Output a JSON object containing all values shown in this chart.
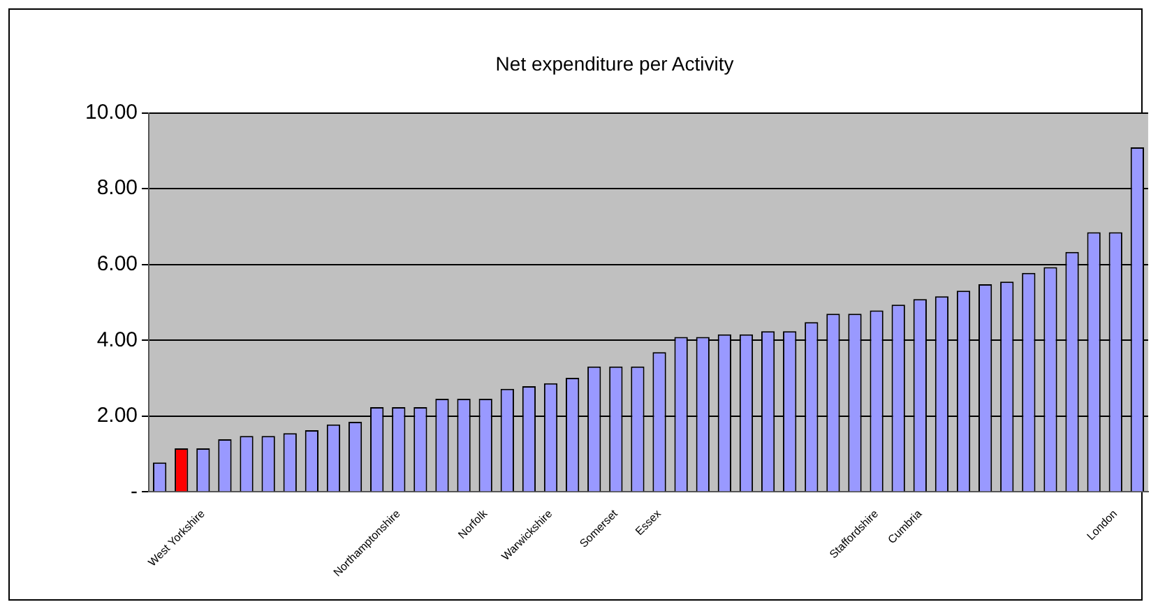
{
  "chart_data": {
    "type": "bar",
    "title": "Net expenditure per Activity",
    "categories": [
      null,
      null,
      "West Yorkshire",
      null,
      null,
      null,
      null,
      null,
      null,
      null,
      null,
      "Northamptonshire",
      null,
      null,
      null,
      "Norfolk",
      null,
      null,
      "Warwickshire",
      null,
      null,
      "Somerset",
      null,
      "Essex",
      null,
      null,
      null,
      null,
      null,
      null,
      null,
      null,
      null,
      "Staffordshire",
      null,
      "Cumbria",
      null,
      null,
      null,
      null,
      null,
      null,
      null,
      null,
      "London",
      null
    ],
    "values": [
      0.78,
      1.15,
      1.15,
      1.39,
      1.48,
      1.48,
      1.55,
      1.63,
      1.78,
      1.85,
      2.24,
      2.24,
      2.24,
      2.46,
      2.46,
      2.46,
      2.72,
      2.79,
      2.87,
      3.01,
      3.31,
      3.31,
      3.31,
      3.69,
      4.09,
      4.09,
      4.16,
      4.16,
      4.24,
      4.24,
      4.48,
      4.7,
      4.7,
      4.79,
      4.94,
      5.09,
      5.16,
      5.31,
      5.48,
      5.55,
      5.78,
      5.93,
      6.33,
      6.85,
      6.85,
      9.09
    ],
    "colors": [
      "#9999ff",
      "#ff0000",
      "#9999ff",
      "#9999ff",
      "#9999ff",
      "#9999ff",
      "#9999ff",
      "#9999ff",
      "#9999ff",
      "#9999ff",
      "#9999ff",
      "#9999ff",
      "#9999ff",
      "#9999ff",
      "#9999ff",
      "#9999ff",
      "#9999ff",
      "#9999ff",
      "#9999ff",
      "#9999ff",
      "#9999ff",
      "#9999ff",
      "#9999ff",
      "#9999ff",
      "#9999ff",
      "#9999ff",
      "#9999ff",
      "#9999ff",
      "#9999ff",
      "#9999ff",
      "#9999ff",
      "#9999ff",
      "#9999ff",
      "#9999ff",
      "#9999ff",
      "#9999ff",
      "#9999ff",
      "#9999ff",
      "#9999ff",
      "#9999ff",
      "#9999ff",
      "#9999ff",
      "#9999ff",
      "#9999ff",
      "#9999ff",
      "#9999ff"
    ],
    "ylim": [
      0,
      10
    ],
    "yticks": [
      {
        "value": 0,
        "label": "-"
      },
      {
        "value": 2,
        "label": "2.00"
      },
      {
        "value": 4,
        "label": "4.00"
      },
      {
        "value": 6,
        "label": "6.00"
      },
      {
        "value": 8,
        "label": "8.00"
      },
      {
        "value": 10,
        "label": "10.00"
      }
    ],
    "grid": "y",
    "legend": false
  }
}
